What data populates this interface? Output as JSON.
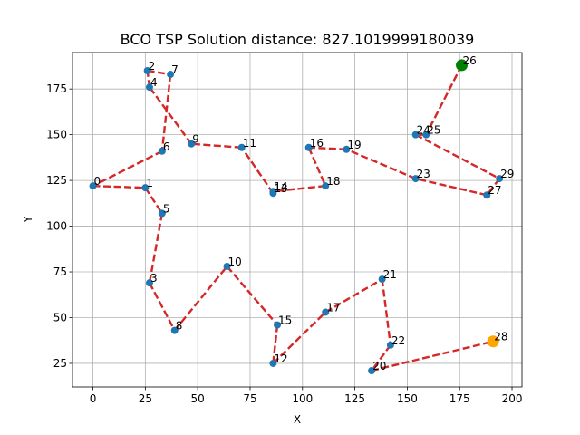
{
  "chart_data": {
    "type": "scatter",
    "title": "BCO TSP Solution distance: 827.1019999180039",
    "xlabel": "X",
    "ylabel": "Y",
    "xlim": [
      -9.75,
      204.75
    ],
    "ylim": [
      12.1,
      194.9
    ],
    "xticks": [
      0,
      25,
      50,
      75,
      100,
      125,
      150,
      175,
      200
    ],
    "yticks": [
      25,
      50,
      75,
      100,
      125,
      150,
      175
    ],
    "grid": true,
    "colors": {
      "point": "#1f77b4",
      "route": "#d62728",
      "start": "#008000",
      "end": "#ffa500"
    },
    "points": [
      {
        "label": "0",
        "x": 0,
        "y": 122
      },
      {
        "label": "1",
        "x": 25,
        "y": 121
      },
      {
        "label": "2",
        "x": 26,
        "y": 185
      },
      {
        "label": "3",
        "x": 27,
        "y": 69
      },
      {
        "label": "4",
        "x": 27,
        "y": 176
      },
      {
        "label": "5",
        "x": 33,
        "y": 107
      },
      {
        "label": "6",
        "x": 33,
        "y": 141
      },
      {
        "label": "7",
        "x": 37,
        "y": 183
      },
      {
        "label": "8",
        "x": 39,
        "y": 43
      },
      {
        "label": "9",
        "x": 47,
        "y": 145
      },
      {
        "label": "10",
        "x": 64,
        "y": 78
      },
      {
        "label": "11",
        "x": 71,
        "y": 143
      },
      {
        "label": "12",
        "x": 86,
        "y": 25
      },
      {
        "label": "13",
        "x": 86,
        "y": 118
      },
      {
        "label": "14",
        "x": 86,
        "y": 119
      },
      {
        "label": "15",
        "x": 88,
        "y": 46
      },
      {
        "label": "16",
        "x": 103,
        "y": 143
      },
      {
        "label": "17",
        "x": 111,
        "y": 53
      },
      {
        "label": "18",
        "x": 111,
        "y": 122
      },
      {
        "label": "19",
        "x": 121,
        "y": 142
      },
      {
        "label": "20",
        "x": 133,
        "y": 21
      },
      {
        "label": "21",
        "x": 138,
        "y": 71
      },
      {
        "label": "22",
        "x": 142,
        "y": 35
      },
      {
        "label": "23",
        "x": 154,
        "y": 126
      },
      {
        "label": "24",
        "x": 154,
        "y": 150
      },
      {
        "label": "25",
        "x": 159,
        "y": 150
      },
      {
        "label": "26",
        "x": 176,
        "y": 188
      },
      {
        "label": "27",
        "x": 188,
        "y": 117
      },
      {
        "label": "28",
        "x": 191,
        "y": 37
      },
      {
        "label": "29",
        "x": 194,
        "y": 126
      }
    ],
    "route": [
      "26",
      "25",
      "24",
      "29",
      "27",
      "23",
      "19",
      "16",
      "18",
      "14",
      "13",
      "11",
      "9",
      "4",
      "2",
      "7",
      "6",
      "0",
      "1",
      "5",
      "3",
      "8",
      "10",
      "15",
      "12",
      "17",
      "21",
      "22",
      "20",
      "28"
    ],
    "start_point": "26",
    "end_point": "28"
  }
}
